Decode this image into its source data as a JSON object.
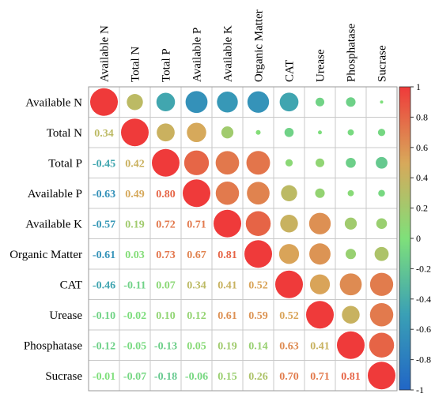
{
  "chart_data": {
    "type": "heatmap",
    "variables": [
      "Available N",
      "Total N",
      "Total P",
      "Available P",
      "Available K",
      "Organic Matter",
      "CAT",
      "Urease",
      "Phosphatase",
      "Sucrase"
    ],
    "matrix": [
      [
        1.0,
        0.34,
        -0.45,
        -0.63,
        -0.57,
        -0.61,
        -0.46,
        -0.1,
        -0.12,
        -0.01
      ],
      [
        0.34,
        1.0,
        0.42,
        0.49,
        0.19,
        0.03,
        -0.11,
        -0.02,
        -0.05,
        -0.07
      ],
      [
        -0.45,
        0.42,
        1.0,
        0.8,
        0.72,
        0.73,
        0.07,
        0.1,
        -0.13,
        -0.18
      ],
      [
        -0.63,
        0.49,
        0.8,
        1.0,
        0.71,
        0.67,
        0.34,
        0.12,
        0.05,
        -0.06
      ],
      [
        -0.57,
        0.19,
        0.72,
        0.71,
        1.0,
        0.81,
        0.41,
        0.61,
        0.19,
        0.15
      ],
      [
        -0.61,
        0.03,
        0.73,
        0.67,
        0.81,
        1.0,
        0.52,
        0.59,
        0.14,
        0.26
      ],
      [
        -0.46,
        -0.11,
        0.07,
        0.34,
        0.41,
        0.52,
        1.0,
        0.52,
        0.63,
        0.7
      ],
      [
        -0.1,
        -0.02,
        0.1,
        0.12,
        0.61,
        0.59,
        0.52,
        1.0,
        0.41,
        0.71
      ],
      [
        -0.12,
        -0.05,
        -0.13,
        0.05,
        0.19,
        0.14,
        0.63,
        0.41,
        1.0,
        0.81
      ],
      [
        -0.01,
        -0.07,
        -0.18,
        -0.06,
        0.15,
        0.26,
        0.7,
        0.71,
        0.81,
        1.0
      ]
    ],
    "value_labels": [
      [
        "",
        "",
        "",
        "",
        "",
        "",
        "",
        "",
        "",
        ""
      ],
      [
        "0.34",
        "",
        "",
        "",
        "",
        "",
        "",
        "",
        "",
        ""
      ],
      [
        "-0.45",
        "0.42",
        "",
        "",
        "",
        "",
        "",
        "",
        "",
        ""
      ],
      [
        "-0.63",
        "0.49",
        "0.80",
        "",
        "",
        "",
        "",
        "",
        "",
        ""
      ],
      [
        "-0.57",
        "0.19",
        "0.72",
        "0.71",
        "",
        "",
        "",
        "",
        "",
        ""
      ],
      [
        "-0.61",
        "0.03",
        "0.73",
        "0.67",
        "0.81",
        "",
        "",
        "",
        "",
        ""
      ],
      [
        "-0.46",
        "-0.11",
        "0.07",
        "0.34",
        "0.41",
        "0.52",
        "",
        "",
        "",
        ""
      ],
      [
        "-0.10",
        "-0.02",
        "0.10",
        "0.12",
        "0.61",
        "0.59",
        "0.52",
        "",
        "",
        ""
      ],
      [
        "-0.12",
        "-0.05",
        "-0.13",
        "0.05",
        "0.19",
        "0.14",
        "0.63",
        "0.41",
        "",
        ""
      ],
      [
        "-0.01",
        "-0.07",
        "-0.18",
        "-0.06",
        "0.15",
        "0.26",
        "0.70",
        "0.71",
        "0.81",
        ""
      ]
    ],
    "lower_triangle": "numbers",
    "upper_triangle": "circles",
    "colorbar": {
      "range": [
        -1,
        1
      ],
      "ticks": [
        "1",
        "0.8",
        "0.6",
        "0.4",
        "0.2",
        "0",
        "-0.2",
        "-0.4",
        "-0.6",
        "-0.8",
        "-1"
      ],
      "colors": [
        "#2166c6",
        "#3aa0b5",
        "#7fe07a",
        "#d8a85a",
        "#ef3a3a"
      ]
    },
    "grid": true
  }
}
